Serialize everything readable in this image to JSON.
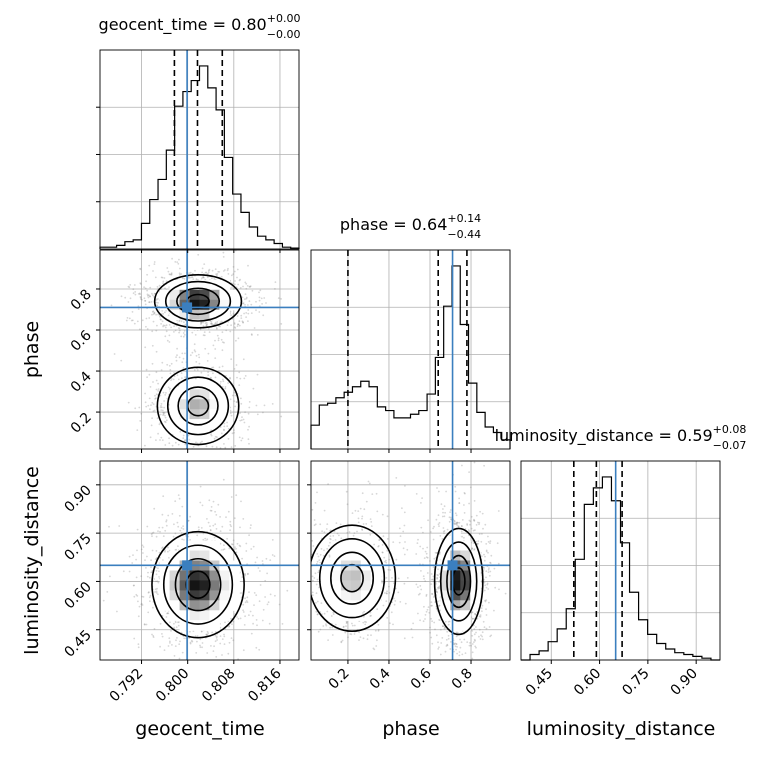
{
  "chart_data": {
    "type": "corner",
    "parameters": [
      "geocent_time",
      "phase",
      "luminosity_distance"
    ],
    "titles": [
      {
        "name": "geocent_time",
        "value": "0.80",
        "plus": "+0.00",
        "minus": "−0.00"
      },
      {
        "name": "phase",
        "value": "0.64",
        "plus": "+0.14",
        "minus": "−0.44"
      },
      {
        "name": "luminosity_distance",
        "value": "0.59",
        "plus": "+0.08",
        "minus": "−0.07"
      }
    ],
    "axes": {
      "geocent_time": {
        "lim": [
          0.7848,
          0.8193
        ],
        "ticks": [
          "0.792",
          "0.800",
          "0.808",
          "0.816"
        ]
      },
      "phase": {
        "lim": [
          0.02,
          0.99
        ],
        "ticks": [
          "0.2",
          "0.4",
          "0.6",
          "0.8"
        ]
      },
      "luminosity_distance": {
        "lim": [
          0.356,
          0.974
        ],
        "ticks": [
          "0.45",
          "0.60",
          "0.75",
          "0.90"
        ]
      }
    },
    "truths": {
      "geocent_time": 0.7999,
      "phase": 0.71,
      "luminosity_distance": 0.65
    },
    "quantiles": {
      "geocent_time": [
        0.7977,
        0.8017,
        0.806
      ],
      "phase": [
        0.2,
        0.64,
        0.78
      ],
      "luminosity_distance": [
        0.52,
        0.59,
        0.67
      ]
    },
    "histograms": {
      "geocent_time": {
        "edges": [
          0.7848,
          0.8193
        ],
        "counts": [
          0.01,
          0.01,
          0.02,
          0.04,
          0.05,
          0.14,
          0.27,
          0.38,
          0.54,
          0.78,
          0.86,
          0.92,
          1.0,
          0.88,
          0.76,
          0.5,
          0.3,
          0.2,
          0.12,
          0.07,
          0.05,
          0.03,
          0.01,
          0.005
        ]
      },
      "phase": {
        "edges": [
          0.02,
          0.99
        ],
        "counts": [
          0.13,
          0.24,
          0.25,
          0.28,
          0.31,
          0.34,
          0.37,
          0.34,
          0.23,
          0.21,
          0.17,
          0.17,
          0.19,
          0.21,
          0.3,
          0.5,
          0.78,
          1.0,
          0.68,
          0.36,
          0.2,
          0.12,
          0.09,
          0.05
        ]
      },
      "luminosity_distance": {
        "edges": [
          0.356,
          0.974
        ],
        "counts": [
          0.0,
          0.03,
          0.05,
          0.1,
          0.17,
          0.28,
          0.55,
          0.85,
          0.94,
          1.0,
          0.87,
          0.64,
          0.37,
          0.22,
          0.14,
          0.09,
          0.06,
          0.04,
          0.03,
          0.02,
          0.01,
          0.0
        ]
      }
    },
    "joint": [
      {
        "x": "geocent_time",
        "y": "phase",
        "modes": [
          {
            "x": 0.8018,
            "y": 0.74,
            "sx": 0.0032,
            "sy": 0.055,
            "w": 1.0
          },
          {
            "x": 0.8018,
            "y": 0.23,
            "sx": 0.003,
            "sy": 0.08,
            "w": 0.55
          }
        ]
      },
      {
        "x": "geocent_time",
        "y": "luminosity_distance",
        "modes": [
          {
            "x": 0.8018,
            "y": 0.59,
            "sx": 0.0034,
            "sy": 0.07,
            "w": 1.0
          }
        ]
      },
      {
        "x": "phase",
        "y": "luminosity_distance",
        "modes": [
          {
            "x": 0.74,
            "y": 0.6,
            "sx": 0.05,
            "sy": 0.07,
            "w": 1.0
          },
          {
            "x": 0.22,
            "y": 0.61,
            "sx": 0.09,
            "sy": 0.07,
            "w": 0.5
          }
        ]
      }
    ],
    "grid": true,
    "colors": {
      "truth": "#3b7fbf",
      "line": "#000000",
      "grid": "#b0b0b0",
      "points": "#8c8c8c"
    }
  }
}
